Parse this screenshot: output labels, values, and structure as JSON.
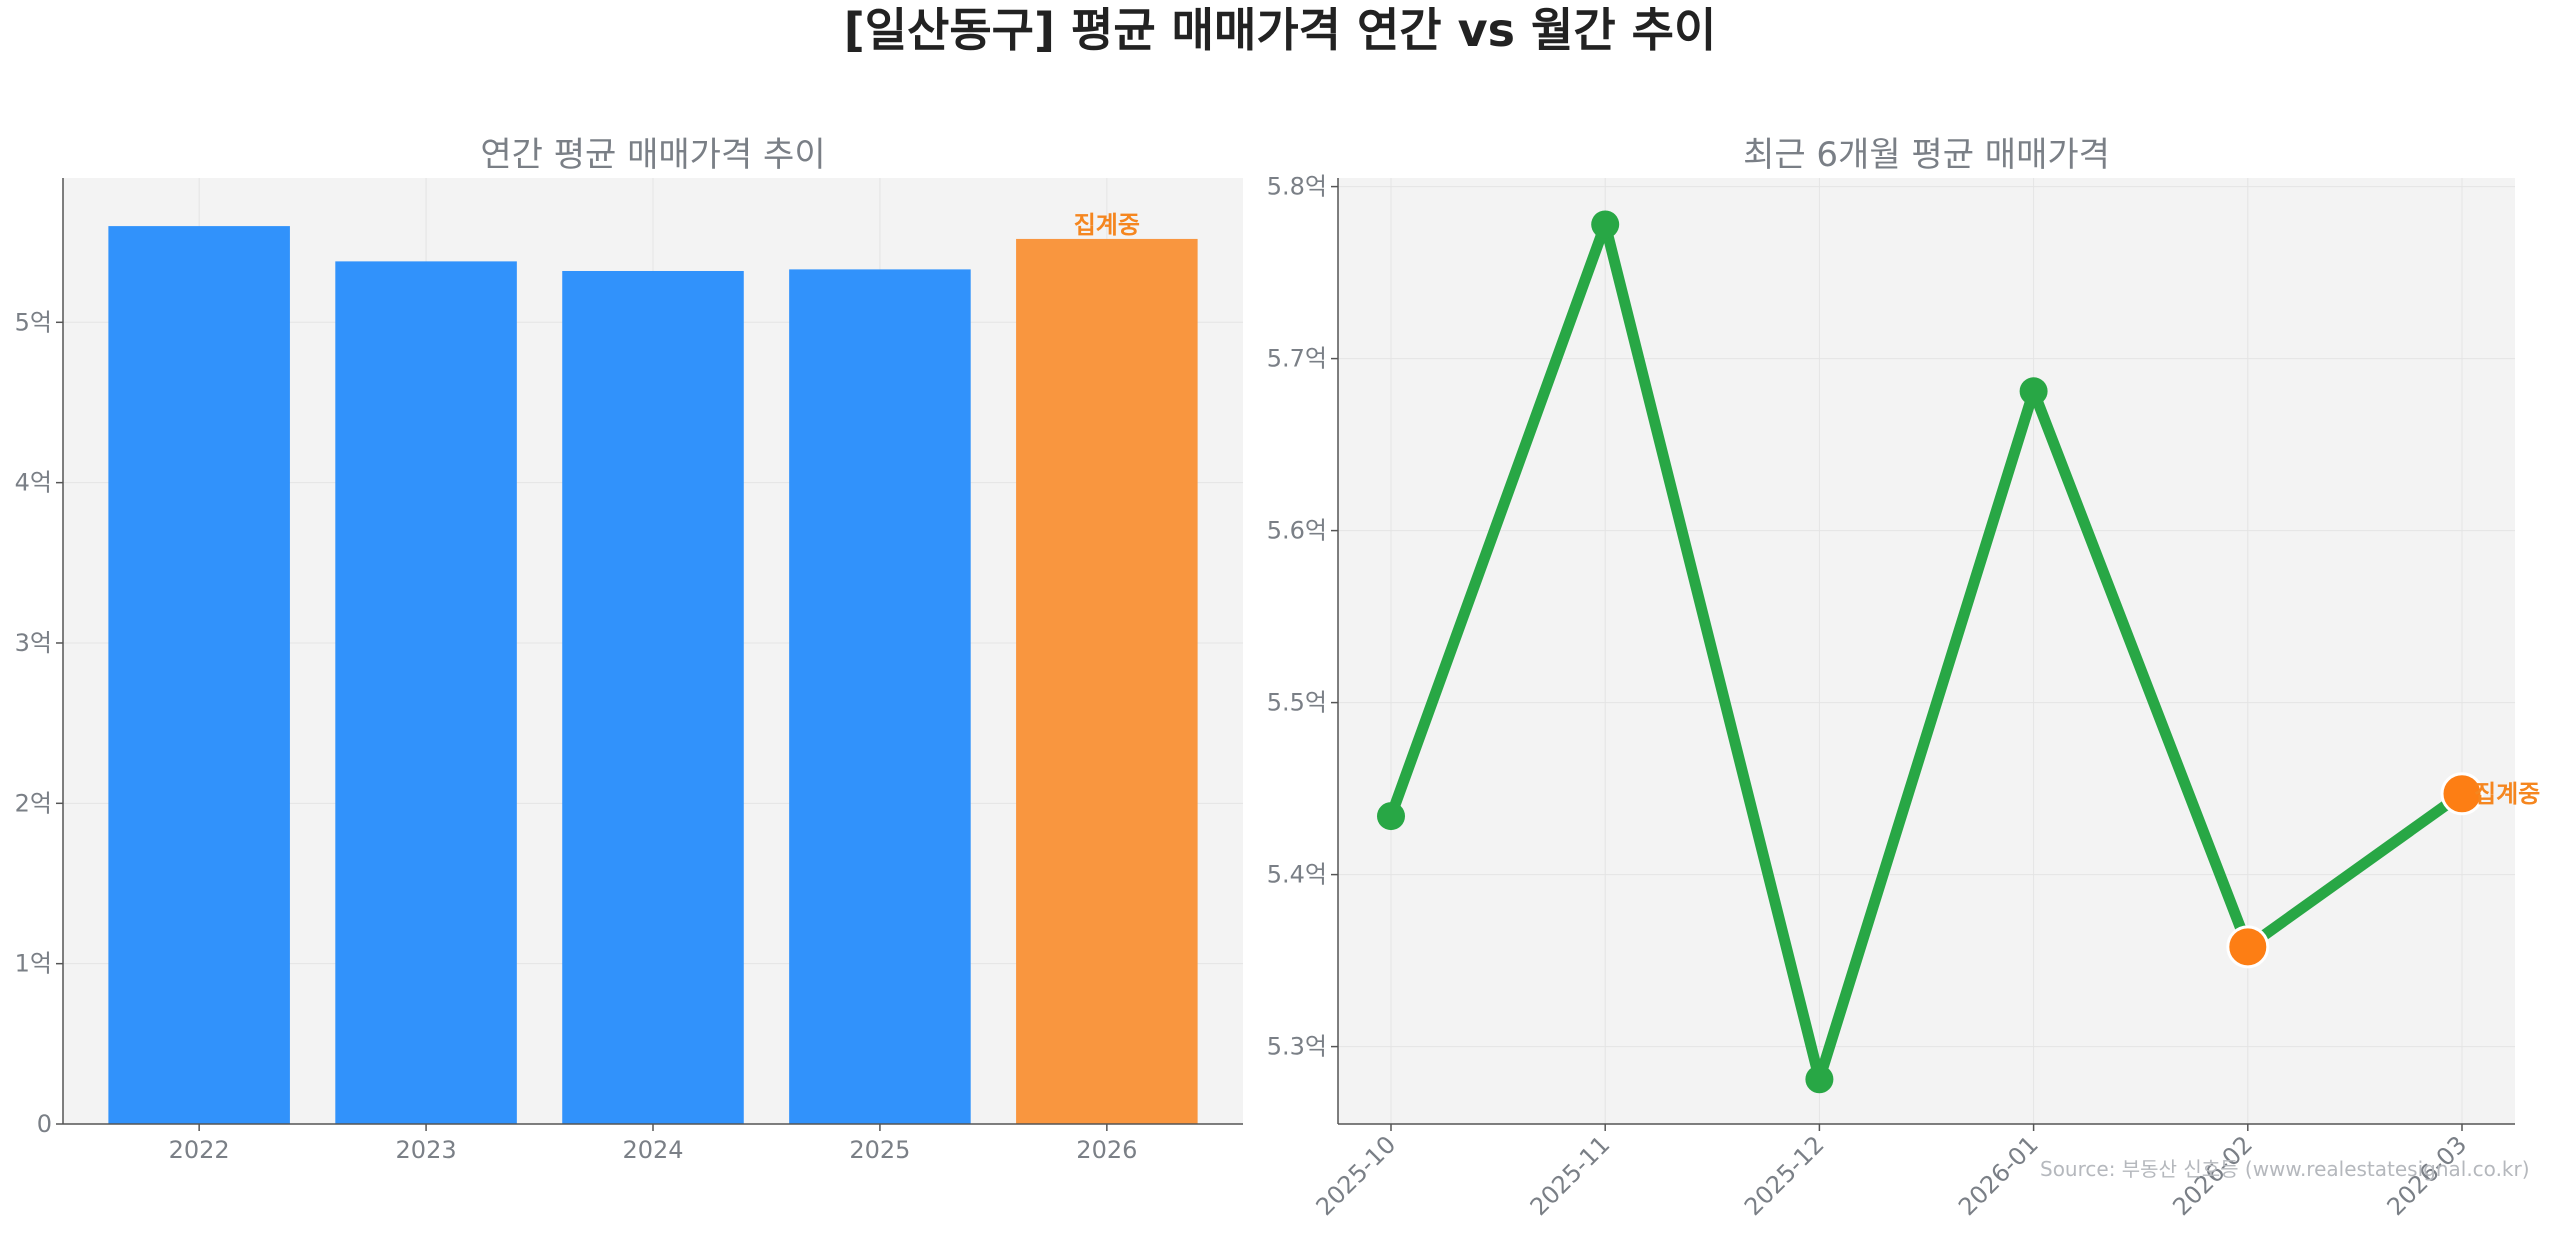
{
  "title": "[일산동구] 평균 매매가격 연간 vs 월간 추이",
  "source": "Source: 부동산 신호등 (www.realestatesignal.co.kr)",
  "colors": {
    "bar": "#3192fb",
    "bar_partial": "#f9963f",
    "line": "#28a745",
    "marker": "#28a745",
    "marker_partial": "#fd7e14",
    "status_text": "#f5861f",
    "panel_bg": "#f3f3f3",
    "axis": "#555555",
    "grid": "#e4e4e4",
    "text": "#7a7f86"
  },
  "chart_data": [
    {
      "type": "bar",
      "title": "연간 평균 매매가격 추이",
      "categories": [
        "2022",
        "2023",
        "2024",
        "2025",
        "2026"
      ],
      "values": [
        5.6,
        5.38,
        5.32,
        5.33,
        5.52
      ],
      "partial": [
        false,
        false,
        false,
        false,
        true
      ],
      "unit": "억",
      "ylim": [
        0,
        5.9
      ],
      "yticks": [
        0,
        1,
        2,
        3,
        4,
        5
      ],
      "ytick_labels": [
        "0",
        "1억",
        "2억",
        "3억",
        "4억",
        "5억"
      ],
      "status_label": "집계중",
      "grid": true
    },
    {
      "type": "line",
      "title": "최근 6개월 평균 매매가격",
      "categories": [
        "2025-10",
        "2025-11",
        "2025-12",
        "2026-01",
        "2026-02",
        "2026-03"
      ],
      "values": [
        5.434,
        5.778,
        5.281,
        5.681,
        5.358,
        5.447
      ],
      "partial": [
        false,
        false,
        false,
        false,
        true,
        true
      ],
      "unit": "억",
      "ylim": [
        5.255,
        5.805
      ],
      "yticks": [
        5.3,
        5.4,
        5.5,
        5.6,
        5.7,
        5.8
      ],
      "ytick_labels": [
        "5.3억",
        "5.4억",
        "5.5억",
        "5.6억",
        "5.7억",
        "5.8억"
      ],
      "status_label": "집계중",
      "grid": true
    }
  ]
}
